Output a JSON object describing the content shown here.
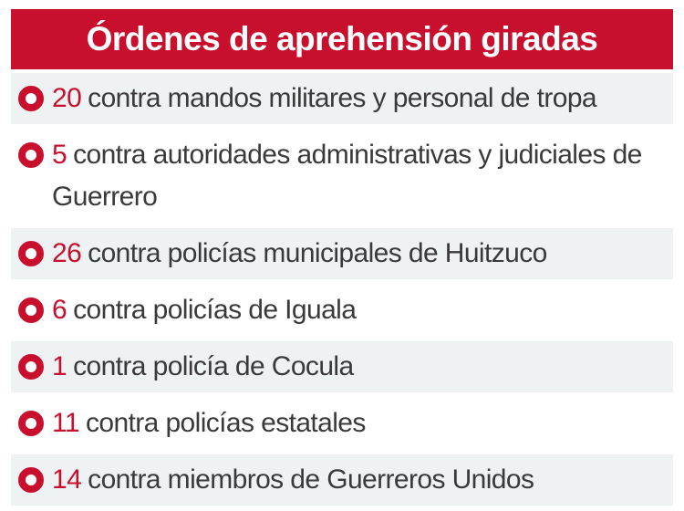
{
  "title": "Órdenes de aprehensión giradas",
  "colors": {
    "accent": "#c8102e",
    "text": "#3a3a3a",
    "row_shade": "#eef2f3"
  },
  "items": [
    {
      "number": "20",
      "text": "contra mandos militares y personal de tropa",
      "bullet_icon": "ring-bullet-icon"
    },
    {
      "number": "5",
      "text": "contra autoridades administrativas y judiciales de Guerrero",
      "bullet_icon": "ring-bullet-icon"
    },
    {
      "number": "26",
      "text": "contra policías municipales de Huitzuco",
      "bullet_icon": "ring-bullet-icon"
    },
    {
      "number": "6",
      "text": "contra policías de Iguala",
      "bullet_icon": "ring-bullet-icon"
    },
    {
      "number": "1",
      "text": "contra policía de Cocula",
      "bullet_icon": "ring-bullet-icon"
    },
    {
      "number": "11",
      "text": "contra policías estatales",
      "bullet_icon": "ring-bullet-icon"
    },
    {
      "number": "14",
      "text": "contra miembros de Guerreros Unidos",
      "bullet_icon": "ring-bullet-icon"
    }
  ]
}
